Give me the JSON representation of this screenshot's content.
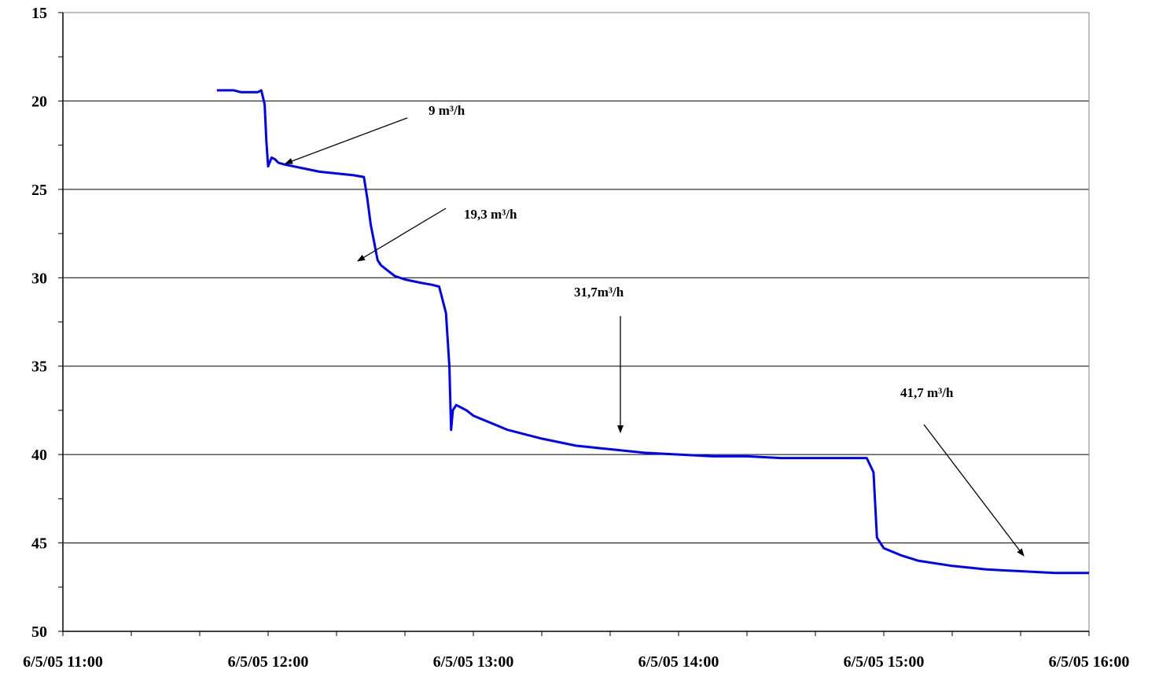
{
  "chart_data": {
    "type": "line",
    "title": "",
    "xlabel": "",
    "ylabel": "",
    "y_reversed": true,
    "ylim": [
      15,
      50
    ],
    "y_ticks": [
      "15",
      "20",
      "25",
      "30",
      "35",
      "40",
      "45",
      "50"
    ],
    "x_range_hours": [
      11,
      16
    ],
    "x_tick_labels": [
      "6/5/05 11:00",
      "6/5/05 12:00",
      "6/5/05 13:00",
      "6/5/05 14:00",
      "6/5/05 15:00",
      "6/5/05 16:00"
    ],
    "grid": "horizontal",
    "line_color": "#0000ff",
    "series": [
      {
        "x": [
          "11:45",
          "11:50",
          "11:52",
          "11:55",
          "11:57",
          "11:58",
          "11:59",
          "11:59:30",
          "12:00",
          "12:01",
          "12:02",
          "12:03",
          "12:05",
          "12:10",
          "12:15",
          "12:20",
          "12:25",
          "12:28",
          "12:29",
          "12:30",
          "12:31",
          "12:32",
          "12:33",
          "12:35",
          "12:37",
          "12:40",
          "12:45",
          "12:48",
          "12:50",
          "12:52",
          "12:53",
          "12:53:30",
          "12:54",
          "12:55",
          "12:56",
          "12:58",
          "13:00",
          "13:10",
          "13:20",
          "13:30",
          "13:40",
          "13:50",
          "14:00",
          "14:10",
          "14:20",
          "14:30",
          "14:40",
          "14:50",
          "14:55",
          "14:57",
          "14:58",
          "14:59",
          "15:00",
          "15:05",
          "15:10",
          "15:20",
          "15:30",
          "15:40",
          "15:50",
          "16:00"
        ],
        "y": [
          19.4,
          19.4,
          19.5,
          19.5,
          19.5,
          19.4,
          20.2,
          22.3,
          23.7,
          23.2,
          23.3,
          23.5,
          23.6,
          23.8,
          24.0,
          24.1,
          24.2,
          24.3,
          25.5,
          27.0,
          28.0,
          29.0,
          29.3,
          29.6,
          29.9,
          30.1,
          30.3,
          30.4,
          30.5,
          32.0,
          35.0,
          38.6,
          37.5,
          37.2,
          37.3,
          37.5,
          37.8,
          38.6,
          39.1,
          39.5,
          39.7,
          39.9,
          40.0,
          40.1,
          40.1,
          40.2,
          40.2,
          40.2,
          40.2,
          41.0,
          44.7,
          45.0,
          45.3,
          45.7,
          46.0,
          46.3,
          46.5,
          46.6,
          46.7,
          46.7
        ]
      }
    ],
    "annotations": [
      {
        "text": "9 m³/h"
      },
      {
        "text": "19,3 m³/h"
      },
      {
        "text": "31,7m³/h"
      },
      {
        "text": "41,7 m³/h"
      }
    ]
  }
}
